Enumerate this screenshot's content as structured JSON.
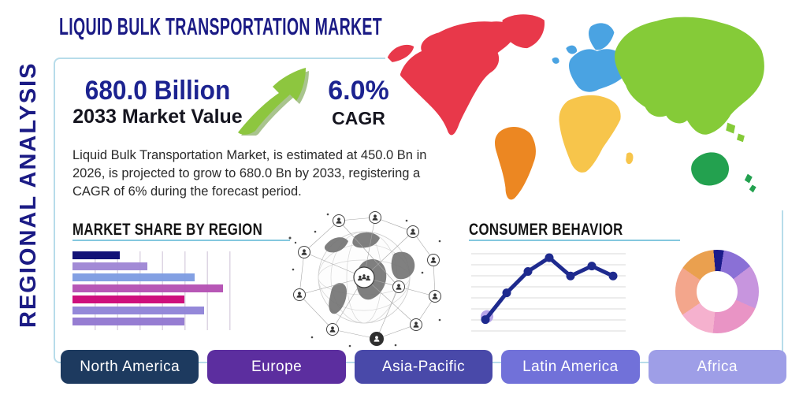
{
  "title": "LIQUID BULK TRANSPORTATION MARKET",
  "vertical_label": "REGIONAL ANALYSIS",
  "stats": {
    "market_value": "680.0 Billion",
    "market_value_label": "2033 Market Value",
    "cagr_value": "6.0%",
    "cagr_label": "CAGR",
    "arrow_color": "#8dc63f",
    "arrow_shadow_color": "#639331"
  },
  "description_lines": [
    "Liquid Bulk Transportation Market, is estimated at 450.0 Bn in",
    "2026, is projected to grow to 680.0 Bn by 2033, registering a",
    "CAGR of 6% during the forecast period."
  ],
  "sections": {
    "market_share_title": "MARKET SHARE BY REGION",
    "consumer_behavior_title": "CONSUMER BEHAVIOR"
  },
  "chart_data": [
    {
      "type": "bar",
      "title": "MARKET SHARE BY REGION",
      "orientation": "horizontal",
      "categories": [
        "bar-1",
        "bar-2",
        "bar-3",
        "bar-4",
        "bar-5",
        "bar-6",
        "bar-7"
      ],
      "values": [
        27,
        43,
        70,
        86,
        64,
        75,
        64
      ],
      "value_unit": "percent-of-axis",
      "colors": [
        "#0a0a73",
        "#9f87d5",
        "#7f9de2",
        "#b552b4",
        "#cc0779",
        "#9184d8",
        "#9379d1"
      ],
      "grid": "vertical",
      "axis_labels_visible": false
    },
    {
      "type": "line",
      "title": "CONSUMER BEHAVIOR",
      "x": [
        1,
        2,
        3,
        4,
        5,
        6,
        7
      ],
      "y": [
        19,
        54,
        82,
        100,
        76,
        89,
        76
      ],
      "ylim": [
        0,
        115
      ],
      "line_color": "#1e2a8e",
      "marker_color": "#1e2a8e",
      "first_marker_halo_color": "#b3a0e8",
      "grid": "horizontal",
      "axis_labels_visible": false
    },
    {
      "type": "pie",
      "donut": true,
      "start_angle_deg": -5,
      "segments": [
        {
          "label": "segment-1",
          "value": 4,
          "color": "#1b1b8a"
        },
        {
          "label": "segment-2",
          "value": 12,
          "color": "#8a70d6"
        },
        {
          "label": "segment-3",
          "value": 17,
          "color": "#c795de"
        },
        {
          "label": "segment-4",
          "value": 20,
          "color": "#e994c5"
        },
        {
          "label": "segment-5",
          "value": 14,
          "color": "#f5b1ce"
        },
        {
          "label": "segment-6",
          "value": 19,
          "color": "#f3a68c"
        },
        {
          "label": "segment-7",
          "value": 14,
          "color": "#eaa04f"
        }
      ]
    }
  ],
  "map": {
    "regions": [
      {
        "id": "north-america",
        "name": "North America",
        "color": "#e8384a"
      },
      {
        "id": "south-america",
        "name": "South America",
        "color": "#ec8722"
      },
      {
        "id": "europe",
        "name": "Europe",
        "color": "#4aa3e2"
      },
      {
        "id": "africa",
        "name": "Africa",
        "color": "#f7c54b"
      },
      {
        "id": "asia",
        "name": "Asia",
        "color": "#85cb38"
      },
      {
        "id": "australia",
        "name": "Australia",
        "color": "#23a14f"
      }
    ]
  },
  "region_buttons": [
    {
      "label": "North America",
      "color": "#1d3a5f"
    },
    {
      "label": "Europe",
      "color": "#5c2e9f"
    },
    {
      "label": "Asia-Pacific",
      "color": "#4949a9"
    },
    {
      "label": "Latin America",
      "color": "#7171d9"
    },
    {
      "label": "Africa",
      "color": "#9e9ee7"
    }
  ],
  "theme": {
    "navy_text": "#1b1b85",
    "box_border": "#b7dcea",
    "underline": "#84c8de"
  }
}
